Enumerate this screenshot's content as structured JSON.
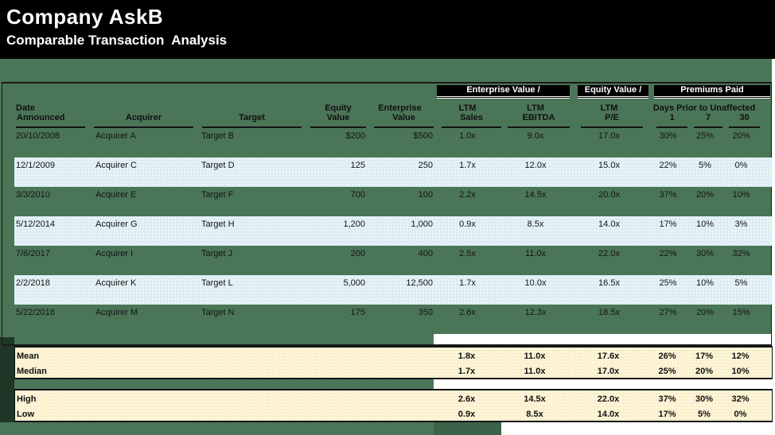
{
  "title": "Company AskB",
  "subtitle": "Comparable Transaction  Analysis",
  "table": {
    "groups": {
      "ev": "Enterprise Value /",
      "eq": "Equity Value /",
      "premiums": "Premiums Paid"
    },
    "headers": {
      "date1": "Date",
      "date2": "Announced",
      "acquirer": "Acquirer",
      "target": "Target",
      "equity1": "Equity",
      "equity2": "Value",
      "enterprise1": "Enterprise",
      "enterprise2": "Value",
      "ltm": "LTM",
      "sales": "Sales",
      "ebitda": "EBITDA",
      "pe": "P/E",
      "days_prior": "Days Prior to Unaffected",
      "d1": "1",
      "d7": "7",
      "d30": "30"
    },
    "rows": [
      {
        "date": "20/10/2008",
        "acquirer": "Acquirer A",
        "target": "Target B",
        "equity": "$200",
        "enterprise": "$500",
        "ltm_sales": "1.0x",
        "ltm_ebitda": "9.0x",
        "ltm_pe": "17.0x",
        "prem_1": "30%",
        "prem_7": "25%",
        "prem_30": "20%"
      },
      {
        "date": "12/1/2009",
        "acquirer": "Acquirer C",
        "target": "Target D",
        "equity": "125",
        "enterprise": "250",
        "ltm_sales": "1.7x",
        "ltm_ebitda": "12.0x",
        "ltm_pe": "15.0x",
        "prem_1": "22%",
        "prem_7": "5%",
        "prem_30": "0%"
      },
      {
        "date": "3/3/2010",
        "acquirer": "Acquirer E",
        "target": "Target F",
        "equity": "700",
        "enterprise": "100",
        "ltm_sales": "2.2x",
        "ltm_ebitda": "14.5x",
        "ltm_pe": "20.0x",
        "prem_1": "37%",
        "prem_7": "20%",
        "prem_30": "10%"
      },
      {
        "date": "5/12/2014",
        "acquirer": "Acquirer G",
        "target": "Target H",
        "equity": "1,200",
        "enterprise": "1,000",
        "ltm_sales": "0.9x",
        "ltm_ebitda": "8.5x",
        "ltm_pe": "14.0x",
        "prem_1": "17%",
        "prem_7": "10%",
        "prem_30": "3%"
      },
      {
        "date": "7/6/2017",
        "acquirer": "Acquirer I",
        "target": "Target J",
        "equity": "200",
        "enterprise": "400",
        "ltm_sales": "2.5x",
        "ltm_ebitda": "11.0x",
        "ltm_pe": "22.0x",
        "prem_1": "22%",
        "prem_7": "30%",
        "prem_30": "32%"
      },
      {
        "date": "2/2/2018",
        "acquirer": "Acquirer K",
        "target": "Target L",
        "equity": "5,000",
        "enterprise": "12,500",
        "ltm_sales": "1.7x",
        "ltm_ebitda": "10.0x",
        "ltm_pe": "16.5x",
        "prem_1": "25%",
        "prem_7": "10%",
        "prem_30": "5%"
      },
      {
        "date": "5/22/2018",
        "acquirer": "Acquirer M",
        "target": "Target N",
        "equity": "175",
        "enterprise": "350",
        "ltm_sales": "2.6x",
        "ltm_ebitda": "12.3x",
        "ltm_pe": "18.5x",
        "prem_1": "27%",
        "prem_7": "20%",
        "prem_30": "15%"
      }
    ],
    "summary": [
      {
        "label": "Mean",
        "ltm_sales": "1.8x",
        "ltm_ebitda": "11.0x",
        "ltm_pe": "17.6x",
        "prem_1": "26%",
        "prem_7": "17%",
        "prem_30": "12%"
      },
      {
        "label": "Median",
        "ltm_sales": "1.7x",
        "ltm_ebitda": "11.0x",
        "ltm_pe": "17.0x",
        "prem_1": "25%",
        "prem_7": "20%",
        "prem_30": "10%"
      },
      {
        "label": "High",
        "ltm_sales": "2.6x",
        "ltm_ebitda": "14.5x",
        "ltm_pe": "22.0x",
        "prem_1": "37%",
        "prem_7": "30%",
        "prem_30": "32%"
      },
      {
        "label": "Low",
        "ltm_sales": "0.9x",
        "ltm_ebitda": "8.5x",
        "ltm_pe": "14.0x",
        "prem_1": "17%",
        "prem_7": "5%",
        "prem_30": "0%"
      }
    ]
  },
  "colors": {
    "page_green": "#4b7557",
    "band_blue": "#dcedf3",
    "summary_cream": "#fbf0cb",
    "group_header_bg": "#000000",
    "border_dark": "#1a1a1a"
  }
}
